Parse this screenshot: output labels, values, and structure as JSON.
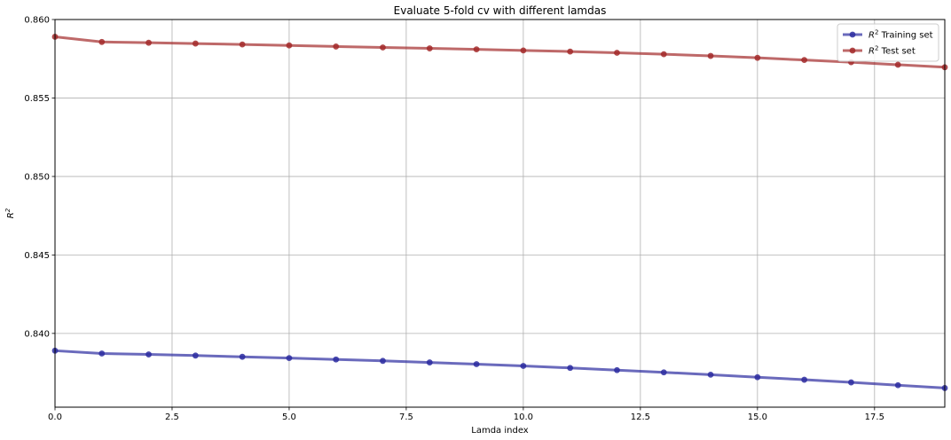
{
  "chart_data": {
    "type": "line",
    "title": "Evaluate 5-fold cv with different lamdas",
    "xlabel": "Lamda index",
    "ylabel": "R",
    "ylabel_sup": "2",
    "xlim": [
      0,
      19
    ],
    "ylim": [
      0.8353,
      0.86
    ],
    "xticks": [
      0,
      2.5,
      5,
      7.5,
      10,
      12.5,
      15,
      17.5
    ],
    "xtick_labels": [
      "0.0",
      "2.5",
      "5.0",
      "7.5",
      "10.0",
      "12.5",
      "15.0",
      "17.5"
    ],
    "yticks": [
      0.84,
      0.845,
      0.85,
      0.855,
      0.86
    ],
    "ytick_labels": [
      "0.840",
      "0.845",
      "0.850",
      "0.855",
      "0.860"
    ],
    "grid": true,
    "legend_position": "top-right",
    "x": [
      0,
      1,
      2,
      3,
      4,
      5,
      6,
      7,
      8,
      9,
      10,
      11,
      12,
      13,
      14,
      15,
      16,
      17,
      18,
      19
    ],
    "series": [
      {
        "name": "Training set",
        "name_prefix": "R",
        "name_sup": "2",
        "color": "#2b2ba0",
        "values": [
          0.8389,
          0.83872,
          0.83866,
          0.83859,
          0.83851,
          0.83843,
          0.83834,
          0.83825,
          0.83815,
          0.83804,
          0.83793,
          0.8378,
          0.83766,
          0.83752,
          0.83737,
          0.83721,
          0.83705,
          0.83688,
          0.8367,
          0.83652
        ]
      },
      {
        "name": "Test set",
        "name_prefix": "R",
        "name_sup": "2",
        "color": "#a32a2a",
        "values": [
          0.8589,
          0.85857,
          0.85852,
          0.85847,
          0.85841,
          0.85835,
          0.85828,
          0.85822,
          0.85816,
          0.8581,
          0.85803,
          0.85796,
          0.85788,
          0.85779,
          0.85768,
          0.85756,
          0.85742,
          0.85728,
          0.85712,
          0.85696
        ]
      }
    ]
  }
}
